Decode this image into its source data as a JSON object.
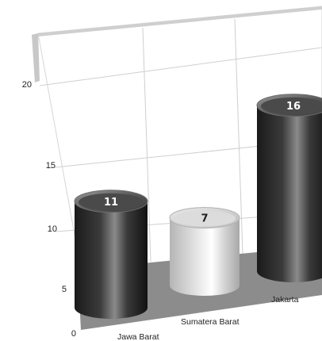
{
  "chart_data": {
    "type": "bar",
    "style": "3d-cylinder",
    "categories": [
      "Jawa Barat",
      "Sumatera Barat",
      "Jakarta"
    ],
    "values": [
      11,
      7,
      16
    ],
    "value_labels": [
      "11",
      "7",
      "16"
    ],
    "yticks": [
      "0",
      "5",
      "10",
      "15",
      "20"
    ],
    "ylim": [
      0,
      22
    ],
    "grid": true,
    "legend": "none",
    "colors": {
      "dark_bar": "#2e2e2e",
      "light_bar": "#d4d4d4",
      "floor": "#8c8c8c",
      "grid": "#cfcfcf",
      "wall": "#cccccc"
    }
  }
}
